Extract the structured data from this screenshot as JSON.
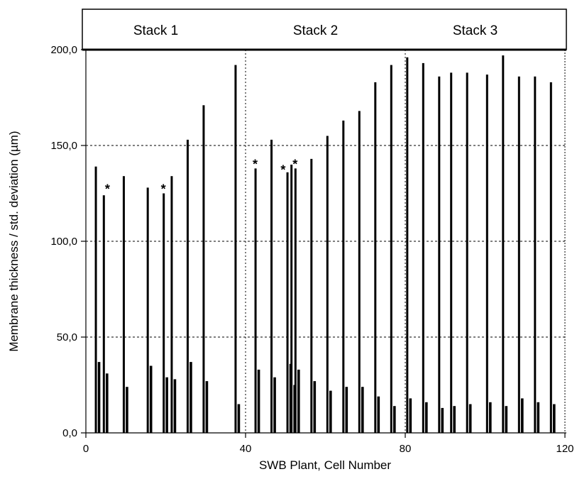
{
  "chart_data": {
    "type": "bar",
    "xlabel": "SWB Plant, Cell Number",
    "ylabel": "Membrane thickness / std. deviation (µm)",
    "xlim": [
      0,
      120
    ],
    "ylim": [
      0,
      200
    ],
    "xticks": [
      0,
      40,
      80,
      120
    ],
    "xtick_labels": [
      "0",
      "40",
      "80",
      "120"
    ],
    "yticks": [
      0,
      50,
      100,
      150,
      200
    ],
    "ytick_labels": [
      "0,0",
      "50,0",
      "100,0",
      "150,0",
      "200,0"
    ],
    "grid": "dotted horizontal lines at 50, 100, 150; dotted vertical lines at 40 and 80",
    "stacks": [
      {
        "label": "Stack 1",
        "from": 0,
        "to": 40
      },
      {
        "label": "Stack 2",
        "from": 40,
        "to": 80
      },
      {
        "label": "Stack 3",
        "from": 80,
        "to": 120
      }
    ],
    "series": [
      {
        "x": [
          2.5,
          4.5,
          9.5,
          15.5,
          19.5,
          21.5,
          25.5,
          29.5,
          37.5,
          42.5,
          46.5,
          50.5,
          51.5,
          52.5,
          56.5,
          60.5,
          64.5,
          68.5,
          72.5,
          76.5,
          80.5,
          84.5,
          88.5,
          91.5,
          95.5,
          100.5,
          104.5,
          108.5,
          112.5,
          116.5
        ],
        "values": [
          139,
          124,
          134,
          128,
          125,
          134,
          153,
          171,
          192,
          138,
          153,
          136,
          140,
          138,
          143,
          155,
          163,
          168,
          183,
          192,
          196,
          193,
          186,
          188,
          188,
          187,
          197,
          186,
          186,
          183
        ]
      },
      {
        "x": [
          3.3,
          5.3,
          10.3,
          16.3,
          20.3,
          22.3,
          26.3,
          30.3,
          38.3,
          43.3,
          47.3,
          51.3,
          52.3,
          53.3,
          57.3,
          61.3,
          65.3,
          69.3,
          73.3,
          77.3,
          81.3,
          85.3,
          89.3,
          92.3,
          96.3,
          101.3,
          105.3,
          109.3,
          113.3,
          117.3
        ],
        "values": [
          37,
          31,
          24,
          35,
          29,
          28,
          37,
          27,
          15,
          33,
          29,
          36,
          25,
          33,
          27,
          22,
          24,
          24,
          19,
          14,
          18,
          16,
          13,
          14,
          15,
          16,
          14,
          18,
          16,
          15
        ]
      }
    ],
    "annotations": [
      {
        "text": "*",
        "x": 5.4,
        "y": 128
      },
      {
        "text": "*",
        "x": 19.4,
        "y": 128
      },
      {
        "text": "*",
        "x": 42.4,
        "y": 141
      },
      {
        "text": "*",
        "x": 49.4,
        "y": 138
      },
      {
        "text": "*",
        "x": 52.4,
        "y": 141
      }
    ]
  }
}
